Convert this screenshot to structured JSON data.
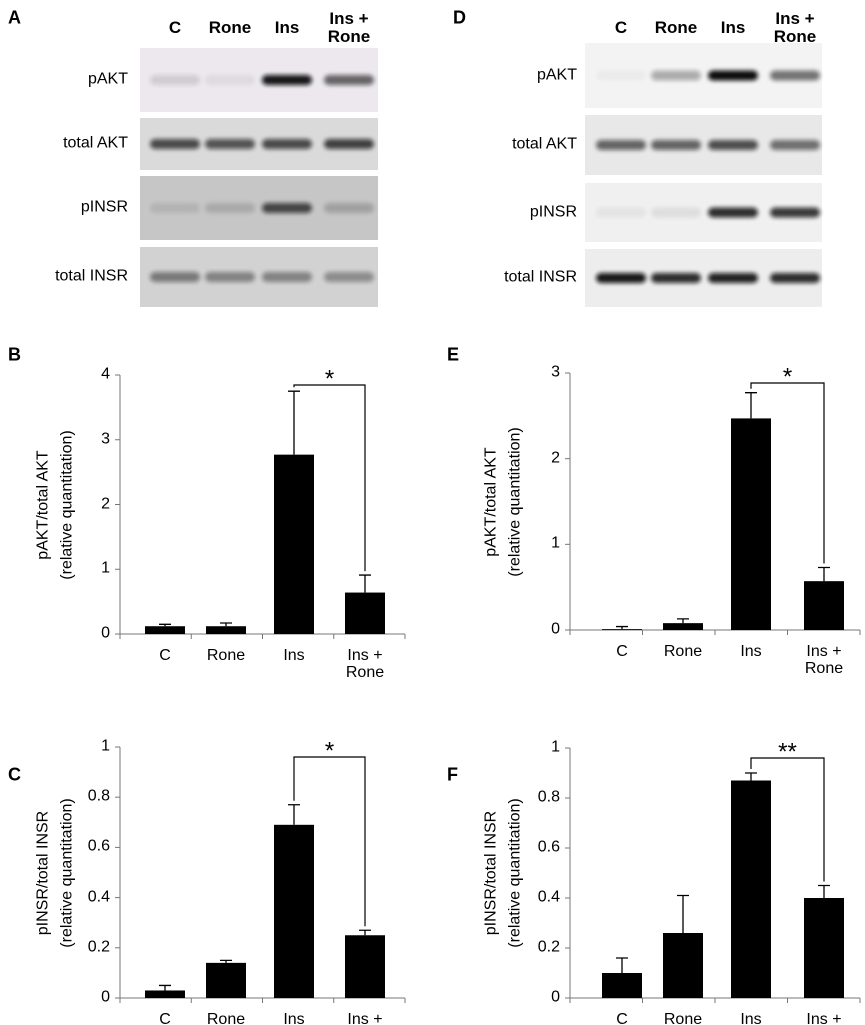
{
  "blots": [
    {
      "letter": "A",
      "lanes": [
        "C",
        "Rone",
        "Ins",
        "Ins + Rone"
      ],
      "rows": [
        "pAKT",
        "total AKT",
        "pINSR",
        "total INSR"
      ]
    },
    {
      "letter": "D",
      "lanes": [
        "C",
        "Rone",
        "Ins",
        "Ins + Rone"
      ],
      "rows": [
        "pAKT",
        "total AKT",
        "pINSR",
        "total INSR"
      ]
    }
  ],
  "chart_data": [
    {
      "type": "bar",
      "letter": "B",
      "ylabel": [
        "pAKT/total AKT",
        "(relative quantitation)"
      ],
      "categories": [
        "C",
        "Rone",
        "Ins",
        "Ins + Rone"
      ],
      "values": [
        0.12,
        0.12,
        2.77,
        0.64
      ],
      "errors": [
        0.03,
        0.05,
        0.98,
        0.27
      ],
      "color": "#000000",
      "ylim": [
        0,
        4
      ],
      "yticks": [
        0,
        1,
        2,
        3,
        4
      ],
      "significance_label": "*"
    },
    {
      "type": "bar",
      "letter": "C",
      "ylabel": [
        "pINSR/total INSR",
        "(relative quantitation)"
      ],
      "categories": [
        "C",
        "Rone",
        "Ins",
        "Ins + Rone"
      ],
      "values": [
        0.03,
        0.14,
        0.69,
        0.25
      ],
      "errors": [
        0.02,
        0.01,
        0.08,
        0.02
      ],
      "color": "#000000",
      "ylim": [
        0,
        1
      ],
      "yticks": [
        0,
        0.2,
        0.4,
        0.6,
        0.8,
        1
      ],
      "significance_label": "*"
    },
    {
      "type": "bar",
      "letter": "E",
      "ylabel": [
        "pAKT/total AKT",
        "(relative quantitation)"
      ],
      "categories": [
        "C",
        "Rone",
        "Ins",
        "Ins + Rone"
      ],
      "values": [
        0.01,
        0.08,
        2.47,
        0.57
      ],
      "errors": [
        0.03,
        0.05,
        0.3,
        0.16
      ],
      "color": "#000000",
      "ylim": [
        0,
        3
      ],
      "yticks": [
        0,
        1,
        2,
        3
      ],
      "significance_label": "*"
    },
    {
      "type": "bar",
      "letter": "F",
      "ylabel": [
        "pINSR/total INSR",
        "(relative quantitation)"
      ],
      "categories": [
        "C",
        "Rone",
        "Ins",
        "Ins + Rone"
      ],
      "values": [
        0.1,
        0.26,
        0.87,
        0.4
      ],
      "errors": [
        0.06,
        0.15,
        0.03,
        0.05
      ],
      "color": "#000000",
      "ylim": [
        0,
        1
      ],
      "yticks": [
        0,
        0.2,
        0.4,
        0.6,
        0.8,
        1
      ],
      "significance_label": "**"
    }
  ]
}
